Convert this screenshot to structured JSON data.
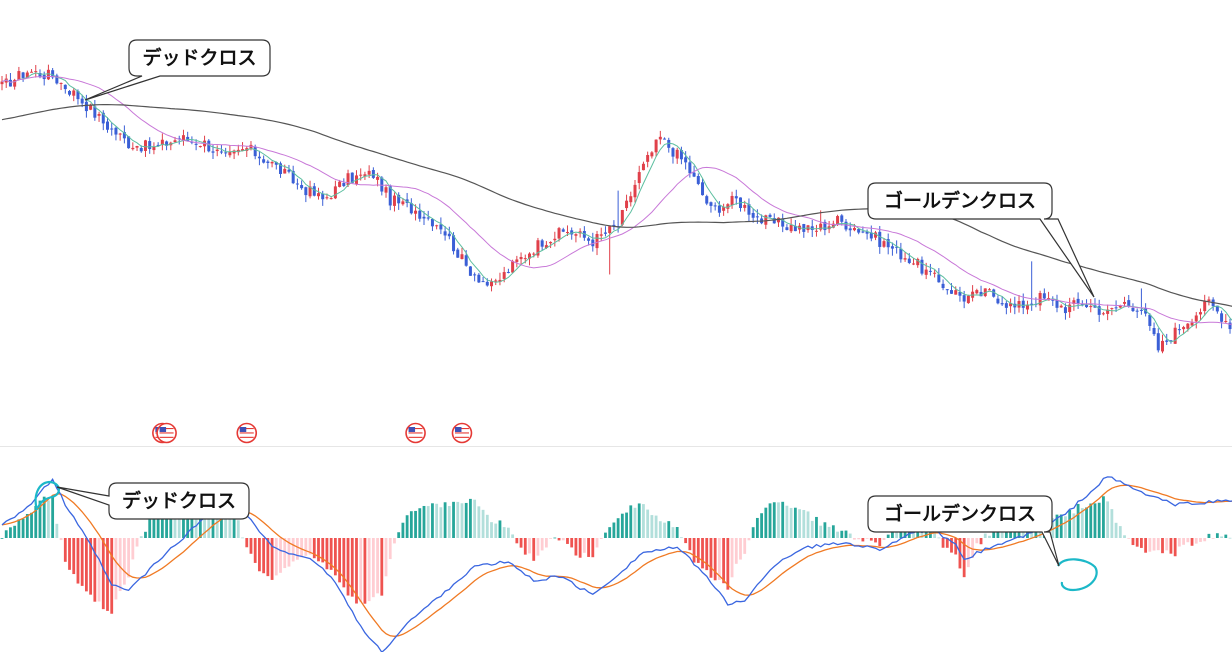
{
  "annotations": {
    "price_dead_cross": "デッドクロス",
    "price_golden_cross": "ゴールデンクロス",
    "macd_dead_cross": "デッドクロス",
    "macd_golden_cross": "ゴールデンクロス"
  },
  "event_marker_icon": "us-flag-icon",
  "colors": {
    "up_candle": "#e0404a",
    "down_candle": "#3a5fd6",
    "ma_short": "#5dbfa0",
    "ma_mid": "#c878d8",
    "ma_long": "#555555",
    "macd_line": "#3a66e0",
    "signal_line": "#f07a24",
    "hist_pos_strong": "#26a69a",
    "hist_pos_weak": "#b2dfdb",
    "hist_neg_strong": "#ef5350",
    "hist_neg_weak": "#ffcdd2",
    "cross_circle": "#1cb8c8"
  },
  "chart_data": [
    {
      "type": "candlestick",
      "title": "",
      "xlabel": "",
      "ylabel": "",
      "grid": false,
      "price_path_anchors": [
        [
          0,
          55
        ],
        [
          6,
          58
        ],
        [
          12,
          57
        ],
        [
          18,
          53
        ],
        [
          24,
          48
        ],
        [
          30,
          44
        ],
        [
          36,
          43
        ],
        [
          42,
          45
        ],
        [
          48,
          44
        ],
        [
          53,
          41
        ],
        [
          58,
          43
        ],
        [
          64,
          40
        ],
        [
          70,
          36
        ],
        [
          76,
          33
        ],
        [
          82,
          37
        ],
        [
          88,
          38
        ],
        [
          92,
          33
        ],
        [
          98,
          31
        ],
        [
          104,
          28
        ],
        [
          110,
          20
        ],
        [
          116,
          16
        ],
        [
          122,
          21
        ],
        [
          128,
          25
        ],
        [
          134,
          27
        ],
        [
          140,
          25
        ],
        [
          146,
          28
        ],
        [
          151,
          38
        ],
        [
          156,
          45
        ],
        [
          162,
          40
        ],
        [
          168,
          31
        ],
        [
          174,
          33
        ],
        [
          180,
          29
        ],
        [
          186,
          28
        ],
        [
          192,
          27
        ],
        [
          198,
          29
        ],
        [
          204,
          27
        ],
        [
          210,
          24
        ],
        [
          216,
          21
        ],
        [
          222,
          17
        ],
        [
          228,
          14
        ],
        [
          234,
          15
        ],
        [
          240,
          12
        ],
        [
          246,
          14
        ],
        [
          252,
          12
        ],
        [
          256,
          13
        ],
        [
          262,
          11
        ],
        [
          266,
          13
        ],
        [
          270,
          12
        ],
        [
          274,
          4
        ],
        [
          280,
          9
        ],
        [
          286,
          13
        ],
        [
          292,
          8
        ]
      ],
      "ma_periods": [
        5,
        20,
        75
      ],
      "events": [
        38,
        39,
        58,
        98,
        109
      ]
    },
    {
      "type": "macd",
      "title": "",
      "xlabel": "",
      "ylabel": "",
      "grid": false,
      "macd_anchors": [
        [
          0,
          1.5
        ],
        [
          6,
          3.2
        ],
        [
          12,
          6.2
        ],
        [
          15,
          3.5
        ],
        [
          22,
          -1.5
        ],
        [
          26,
          -5
        ],
        [
          30,
          -5.5
        ],
        [
          38,
          -2
        ],
        [
          44,
          0.5
        ],
        [
          50,
          3
        ],
        [
          56,
          3.5
        ],
        [
          64,
          -1
        ],
        [
          72,
          -2
        ],
        [
          78,
          -4
        ],
        [
          86,
          -10
        ],
        [
          90,
          -12
        ],
        [
          96,
          -9
        ],
        [
          104,
          -6
        ],
        [
          112,
          -3
        ],
        [
          120,
          -2.5
        ],
        [
          126,
          -4.5
        ],
        [
          132,
          -4
        ],
        [
          140,
          -6
        ],
        [
          146,
          -3.8
        ],
        [
          152,
          -1.5
        ],
        [
          160,
          -1
        ],
        [
          166,
          -3.5
        ],
        [
          172,
          -7
        ],
        [
          176,
          -6.5
        ],
        [
          184,
          -2.5
        ],
        [
          190,
          -1
        ],
        [
          200,
          -0.5
        ],
        [
          208,
          -1.2
        ],
        [
          214,
          0.2
        ],
        [
          220,
          1
        ],
        [
          226,
          -0.8
        ],
        [
          228,
          -2.2
        ],
        [
          234,
          -1
        ],
        [
          244,
          0.5
        ],
        [
          252,
          2.5
        ],
        [
          262,
          6.5
        ],
        [
          270,
          4.8
        ],
        [
          278,
          3.5
        ],
        [
          292,
          4
        ]
      ],
      "signal_ema": 9,
      "ylim": [
        -12,
        8
      ]
    }
  ]
}
